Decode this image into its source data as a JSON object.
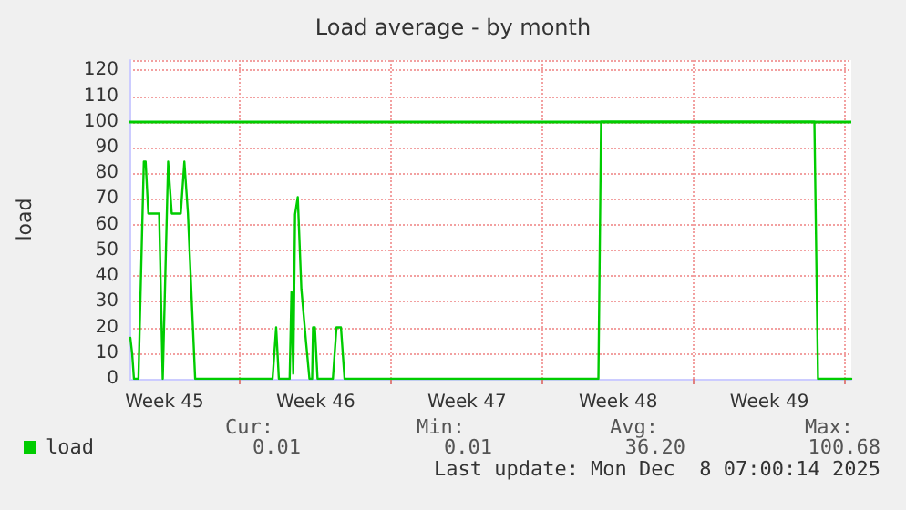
{
  "chart_data": {
    "type": "line",
    "title": "Load average - by month",
    "ylabel": "load",
    "x": [
      "2025-11-04T22:00",
      "2025-11-05T00:00",
      "2025-11-05T02:00",
      "2025-11-05T07:00",
      "2025-11-05T13:00",
      "2025-11-05T15:00",
      "2025-11-05T18:00",
      "2025-11-06T06:00",
      "2025-11-06T10:00",
      "2025-11-06T11:00",
      "2025-11-06T16:00",
      "2025-11-06T17:00",
      "2025-11-06T20:00",
      "2025-11-07T06:00",
      "2025-11-07T10:00",
      "2025-11-07T11:00",
      "2025-11-07T14:00",
      "2025-11-07T22:00",
      "2025-11-11T12:00",
      "2025-11-11T16:00",
      "2025-11-11T19:00",
      "2025-11-12T07:00",
      "2025-11-12T09:00",
      "2025-11-12T11:00",
      "2025-11-12T13:00",
      "2025-11-12T16:00",
      "2025-11-12T20:00",
      "2025-11-13T01:00",
      "2025-11-13T05:00",
      "2025-11-13T08:00",
      "2025-11-13T09:00",
      "2025-11-13T11:00",
      "2025-11-13T14:00",
      "2025-11-14T07:00",
      "2025-11-14T11:00",
      "2025-11-14T16:00",
      "2025-11-14T20:00",
      "2025-11-26T14:00",
      "2025-11-26T17:00",
      "2025-12-06T14:00",
      "2025-12-06T18:00",
      "2025-12-08T07:00"
    ],
    "series": [
      {
        "name": "load",
        "color": "#00cc00",
        "values": [
          16,
          10,
          0,
          0,
          84.5,
          84.5,
          64.3,
          64.3,
          0,
          0,
          84.5,
          84.5,
          64.3,
          64.3,
          84.5,
          84.5,
          64.3,
          0,
          0,
          20,
          0,
          0,
          33.8,
          2,
          64,
          70.7,
          35,
          15,
          0,
          0,
          20,
          20,
          0,
          0,
          20,
          20,
          0,
          0,
          100,
          100,
          0,
          0
        ]
      }
    ],
    "xlim": [
      "2025-11-04T21:00",
      "2025-12-08T07:00"
    ],
    "xticks": [
      {
        "value": "2025-11-06T12:00",
        "label": "Week 45"
      },
      {
        "value": "2025-11-10T00:00",
        "label": null
      },
      {
        "value": "2025-11-13T12:00",
        "label": "Week 46"
      },
      {
        "value": "2025-11-17T00:00",
        "label": null
      },
      {
        "value": "2025-11-20T12:00",
        "label": "Week 47"
      },
      {
        "value": "2025-11-24T00:00",
        "label": null
      },
      {
        "value": "2025-11-27T12:00",
        "label": "Week 48"
      },
      {
        "value": "2025-12-01T00:00",
        "label": null
      },
      {
        "value": "2025-12-04T12:00",
        "label": "Week 49"
      },
      {
        "value": "2025-12-08T00:00",
        "label": null
      }
    ],
    "ylim": [
      0,
      124
    ],
    "yticks": [
      0,
      10,
      20,
      30,
      40,
      50,
      60,
      70,
      80,
      90,
      100,
      110,
      120
    ],
    "grid": true,
    "legend": "bottom left",
    "marker": "none",
    "line_style": "solid",
    "ref_lines": [
      {
        "axis": "y",
        "value": 100,
        "color": "#00cc00"
      }
    ],
    "annotations": [
      "Cur:",
      "0.01",
      "Min:",
      "0.01",
      "Avg:",
      "36.20",
      "Max:",
      "100.68",
      "Last update: Mon Dec  8 07:00:14 2025"
    ]
  }
}
